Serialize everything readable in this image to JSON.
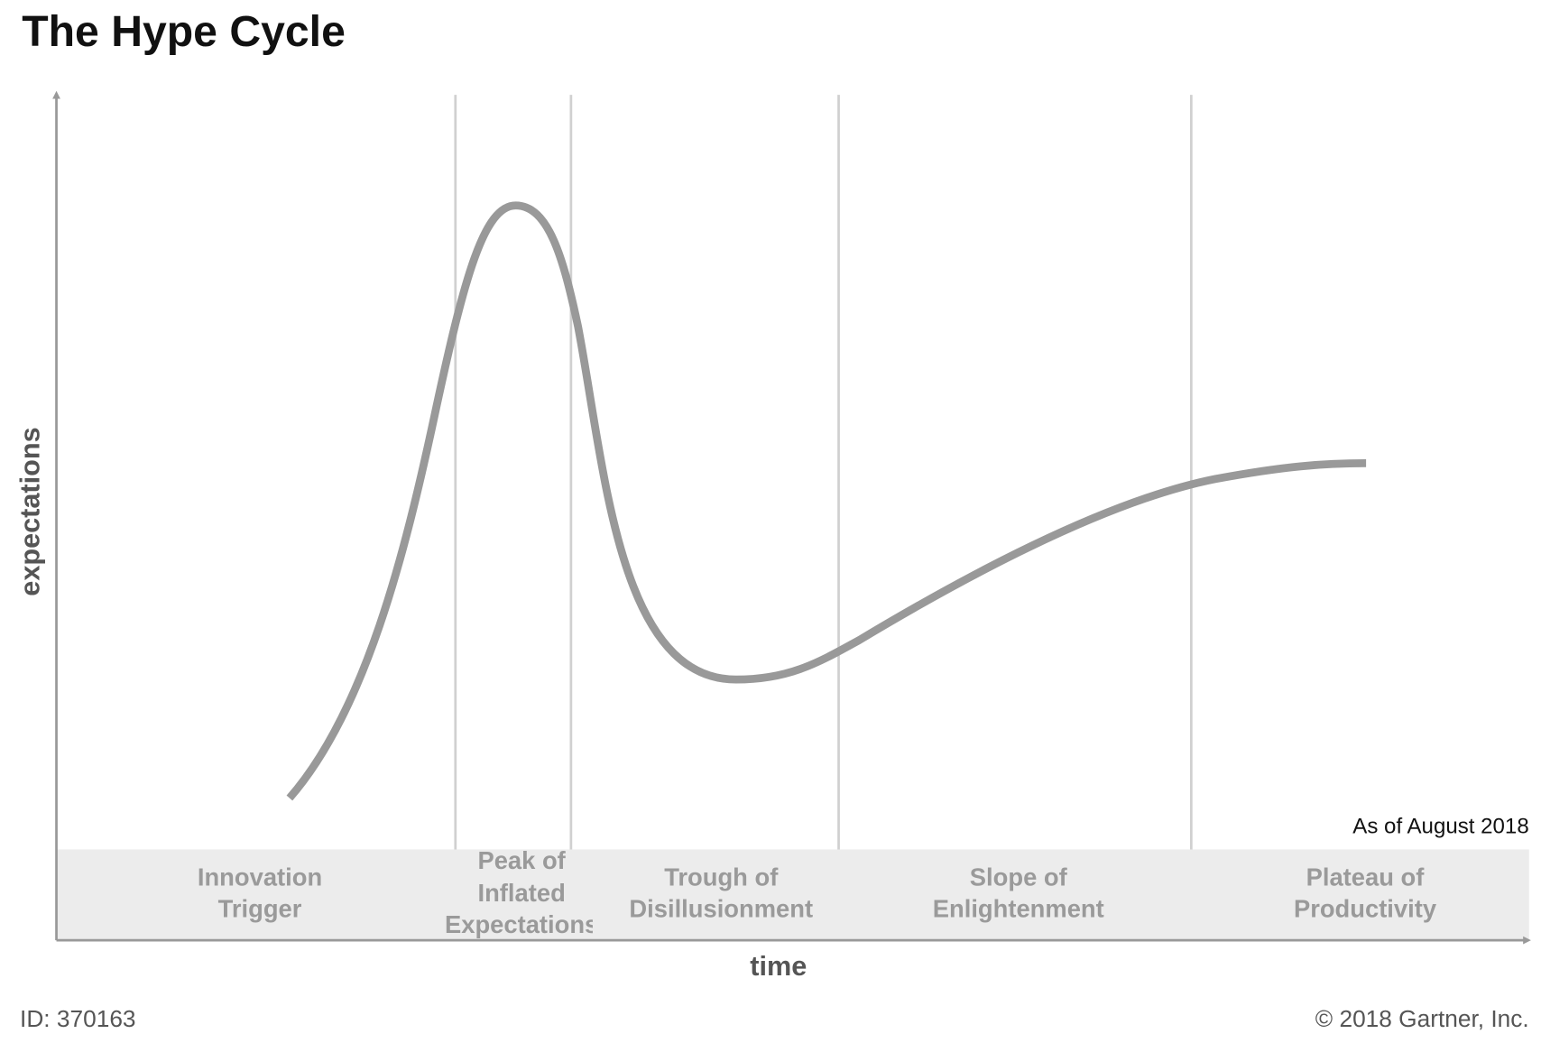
{
  "header": {
    "title": "The Hype Cycle"
  },
  "axes": {
    "y_label": "expectations",
    "x_label": "time"
  },
  "phases": [
    {
      "lines": [
        "Innovation",
        "Trigger"
      ]
    },
    {
      "lines": [
        "Peak of",
        "Inflated",
        "Expectations"
      ]
    },
    {
      "lines": [
        "Trough of",
        "Disillusionment"
      ]
    },
    {
      "lines": [
        "Slope of",
        "Enlightenment"
      ]
    },
    {
      "lines": [
        "Plateau of",
        "Productivity"
      ]
    }
  ],
  "note": "As of August 2018",
  "footer": {
    "id": "ID: 370163",
    "copyright": "© 2018 Gartner, Inc."
  }
}
